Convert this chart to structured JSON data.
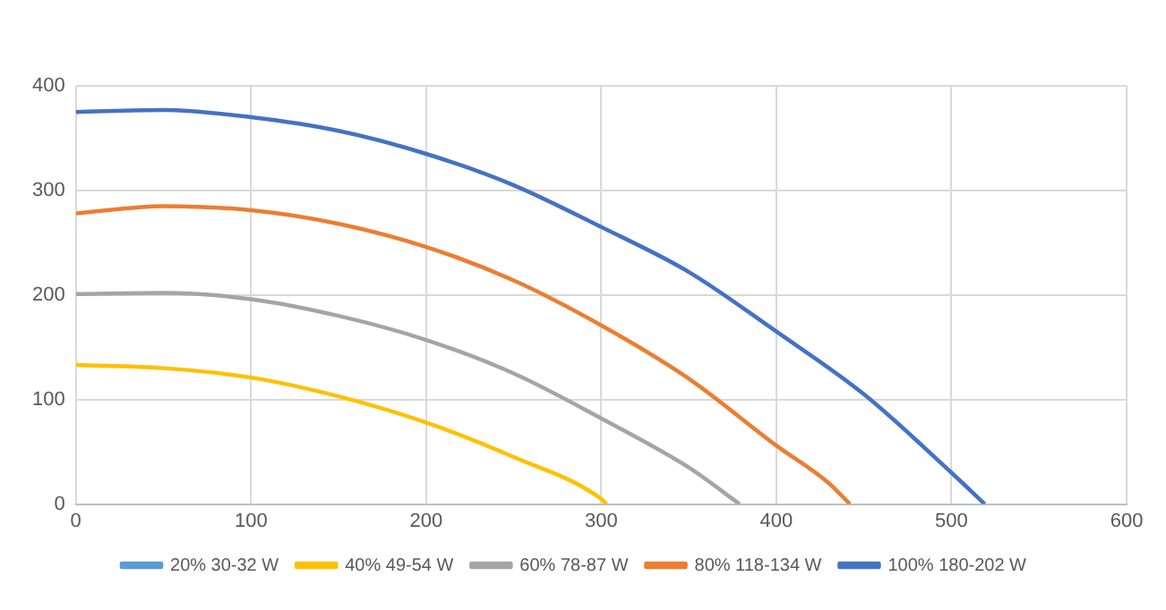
{
  "chart_data": {
    "type": "line",
    "xlim": [
      0,
      600
    ],
    "xticks": [
      0,
      100,
      200,
      300,
      400,
      500,
      600
    ],
    "ylim": [
      0,
      400
    ],
    "yticks": [
      0,
      100,
      200,
      300,
      400
    ],
    "grid": true,
    "legend": "bottom",
    "marker": "none",
    "line_style": "solid",
    "series": [
      {
        "name": "20% 30-32 W",
        "color": "#5b9bd5"
      },
      {
        "name": "40% 49-54 W",
        "color": "#ffc000",
        "x": [
          0,
          50,
          100,
          150,
          200,
          250,
          300,
          303
        ],
        "values": [
          133,
          130,
          121,
          103,
          78,
          45,
          5,
          0
        ]
      },
      {
        "name": "60% 78-87 W",
        "color": "#a5a5a5",
        "x": [
          0,
          50,
          100,
          150,
          200,
          250,
          300,
          350,
          379
        ],
        "values": [
          201,
          202,
          196,
          180,
          157,
          125,
          82,
          35,
          0
        ]
      },
      {
        "name": "80% 118-134 W",
        "color": "#ed7d31",
        "x": [
          0,
          50,
          100,
          150,
          200,
          250,
          300,
          350,
          400,
          430,
          442
        ],
        "values": [
          278,
          285,
          281,
          268,
          246,
          214,
          171,
          120,
          56,
          20,
          0
        ]
      },
      {
        "name": "100% 180-202 W",
        "color": "#4472c4",
        "x": [
          0,
          50,
          100,
          150,
          200,
          250,
          300,
          350,
          400,
          450,
          500,
          519
        ],
        "values": [
          375,
          377,
          370,
          357,
          335,
          305,
          265,
          222,
          165,
          105,
          30,
          0
        ]
      }
    ]
  }
}
